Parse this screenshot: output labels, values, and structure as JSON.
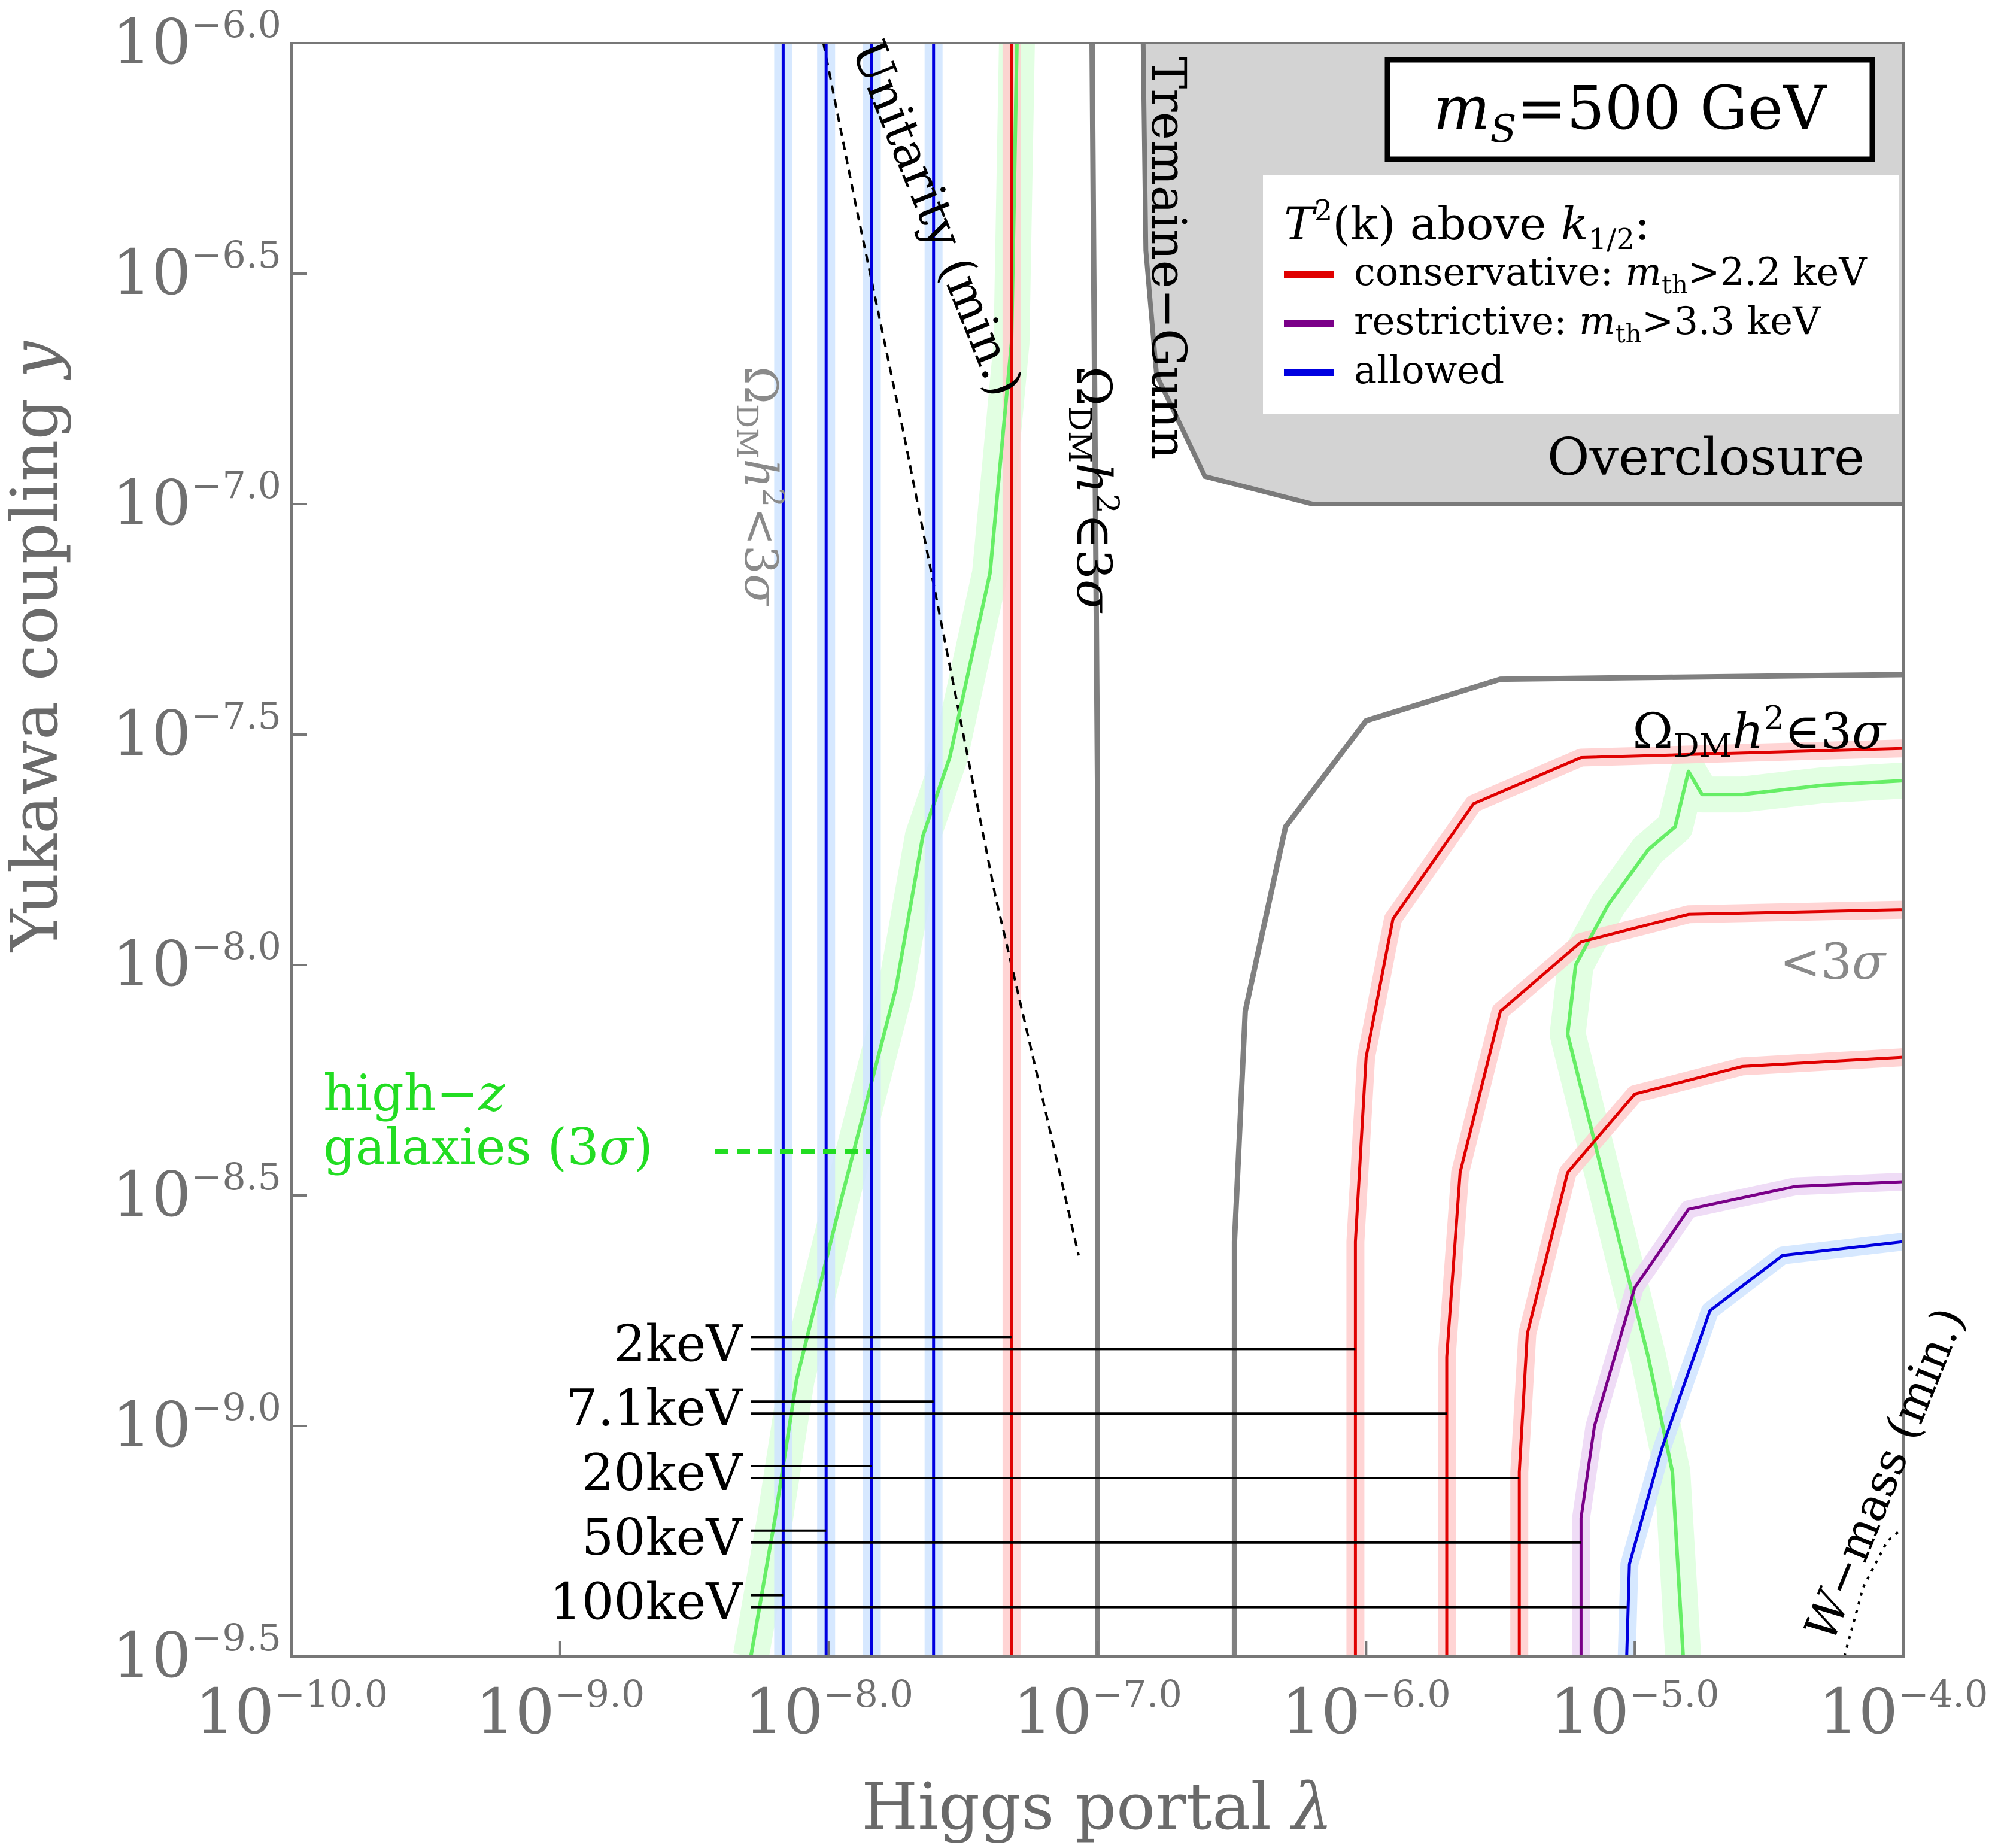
{
  "chart_data": {
    "type": "line",
    "title": "m_S=500 GeV",
    "title_parts": {
      "m": "m",
      "sub": "S",
      "rest": "=500 GeV"
    },
    "xlabel": "Higgs portal λ",
    "xlabel_text": "Higgs portal ",
    "xlabel_sym": "λ",
    "ylabel": "Yukawa coupling y",
    "ylabel_text": "Yukawa coupling ",
    "ylabel_sym": "y",
    "x_scale": "log10",
    "y_scale": "log10",
    "xlim": [
      -10.0,
      -4.0
    ],
    "ylim": [
      -9.5,
      -6.0
    ],
    "x_ticks": [
      {
        "v": -10.0,
        "label": "−10.0"
      },
      {
        "v": -9.0,
        "label": "−9.0"
      },
      {
        "v": -8.0,
        "label": "−8.0"
      },
      {
        "v": -7.0,
        "label": "−7.0"
      },
      {
        "v": -6.0,
        "label": "−6.0"
      },
      {
        "v": -5.0,
        "label": "−5.0"
      },
      {
        "v": -4.0,
        "label": "−4.0"
      }
    ],
    "y_ticks": [
      {
        "v": -6.0,
        "label": "−6.0"
      },
      {
        "v": -6.5,
        "label": "−6.5"
      },
      {
        "v": -7.0,
        "label": "−7.0"
      },
      {
        "v": -7.5,
        "label": "−7.5"
      },
      {
        "v": -8.0,
        "label": "−8.0"
      },
      {
        "v": -8.5,
        "label": "−8.5"
      },
      {
        "v": -9.0,
        "label": "−9.0"
      },
      {
        "v": -9.5,
        "label": "−9.5"
      }
    ],
    "tick_base": "10",
    "legend": {
      "placement": "top-right",
      "title": {
        "T": "T",
        "sup": "2",
        "mid": "(k) above ",
        "k": "k",
        "sub": "1/2",
        "end": ":"
      },
      "entries": [
        {
          "name": "conservative",
          "color": "#e00000",
          "label": "conservative: ",
          "m": "m",
          "sub": "th",
          "cond": ">2.2 keV"
        },
        {
          "name": "restrictive",
          "color": "#7a0088",
          "label": "restrictive: ",
          "m": "m",
          "sub": "th",
          "cond": ">3.3 keV"
        },
        {
          "name": "allowed",
          "color": "#0000e0",
          "label": "allowed",
          "m": "",
          "sub": "",
          "cond": ""
        }
      ]
    },
    "regions": [
      {
        "name": "Overclosure",
        "label": "Overclosure",
        "color": "#d3d3d3",
        "boundary": [
          [
            -6.83,
            -6.0
          ],
          [
            -6.82,
            -6.45
          ],
          [
            -6.78,
            -6.72
          ],
          [
            -6.6,
            -6.94
          ],
          [
            -6.2,
            -7.0
          ],
          [
            -4.0,
            -7.0
          ]
        ]
      }
    ],
    "series": [
      {
        "name": "Tremaine-Gunn",
        "color": "#808080",
        "label": "Tremaine−Gunn",
        "points": [
          [
            -7.02,
            -6.0
          ],
          [
            -7.0,
            -7.6
          ],
          [
            -7.0,
            -9.5
          ]
        ]
      },
      {
        "name": "Omega_DM h2 in 3sigma (right)",
        "color": "#808080",
        "points": [
          [
            -6.49,
            -9.5
          ],
          [
            -6.49,
            -8.6
          ],
          [
            -6.45,
            -8.1
          ],
          [
            -6.3,
            -7.7
          ],
          [
            -6.0,
            -7.47
          ],
          [
            -5.5,
            -7.38
          ],
          [
            -4.0,
            -7.37
          ]
        ]
      },
      {
        "name": "Unitarity (min.)",
        "color": "#000000",
        "dash": "dashed",
        "label": "Unitarity (min.)",
        "points": [
          [
            -8.02,
            -6.0
          ],
          [
            -7.9,
            -6.35
          ],
          [
            -7.72,
            -6.85
          ],
          [
            -7.55,
            -7.35
          ],
          [
            -7.38,
            -7.85
          ],
          [
            -7.2,
            -8.3
          ],
          [
            -7.07,
            -8.63
          ]
        ]
      },
      {
        "name": "W-mass (min.)",
        "color": "#000000",
        "dash": "dotted",
        "label": "W−mass (min.)",
        "points": [
          [
            -4.22,
            -9.5
          ],
          [
            -4.15,
            -9.35
          ],
          [
            -4.06,
            -9.25
          ],
          [
            -4.0,
            -9.22
          ]
        ]
      },
      {
        "name": "high-z galaxies (3 sigma)",
        "color": "#66ee66",
        "points": [
          [
            -8.29,
            -9.5
          ],
          [
            -8.2,
            -9.2
          ],
          [
            -8.12,
            -8.9
          ],
          [
            -7.95,
            -8.5
          ],
          [
            -7.75,
            -8.05
          ],
          [
            -7.65,
            -7.72
          ],
          [
            -7.55,
            -7.55
          ],
          [
            -7.4,
            -7.15
          ],
          [
            -7.32,
            -6.65
          ],
          [
            -7.3,
            -6.0
          ]
        ]
      },
      {
        "name": "high-z galaxies (3 sigma) right",
        "color": "#66ee66",
        "points": [
          [
            -4.82,
            -9.5
          ],
          [
            -4.86,
            -9.1
          ],
          [
            -4.95,
            -8.85
          ],
          [
            -5.1,
            -8.5
          ],
          [
            -5.25,
            -8.15
          ],
          [
            -5.22,
            -8.0
          ],
          [
            -5.1,
            -7.87
          ],
          [
            -4.95,
            -7.75
          ],
          [
            -4.85,
            -7.7
          ],
          [
            -4.8,
            -7.58
          ],
          [
            -4.75,
            -7.63
          ],
          [
            -4.6,
            -7.63
          ],
          [
            -4.3,
            -7.61
          ],
          [
            -4.0,
            -7.6
          ]
        ]
      },
      {
        "name": "vertical 2keV",
        "color": "#e00000",
        "points": [
          [
            -7.32,
            -9.5
          ],
          [
            -7.32,
            -6.0
          ]
        ]
      },
      {
        "name": "vertical 7.1keV",
        "color": "#0000e0",
        "points": [
          [
            -7.61,
            -9.5
          ],
          [
            -7.61,
            -6.0
          ]
        ]
      },
      {
        "name": "vertical 20keV",
        "color": "#0000e0",
        "points": [
          [
            -7.84,
            -9.5
          ],
          [
            -7.84,
            -6.0
          ]
        ]
      },
      {
        "name": "vertical 50keV",
        "color": "#0000e0",
        "points": [
          [
            -8.01,
            -9.5
          ],
          [
            -8.01,
            -6.0
          ]
        ]
      },
      {
        "name": "vertical 100keV",
        "color": "#0000e0",
        "points": [
          [
            -8.17,
            -9.5
          ],
          [
            -8.17,
            -6.0
          ]
        ]
      },
      {
        "name": "corner 2keV",
        "color": "#e00000",
        "points": [
          [
            -6.04,
            -9.5
          ],
          [
            -6.04,
            -8.6
          ],
          [
            -6.0,
            -8.2
          ],
          [
            -5.9,
            -7.9
          ],
          [
            -5.6,
            -7.65
          ],
          [
            -5.2,
            -7.55
          ],
          [
            -4.0,
            -7.53
          ]
        ]
      },
      {
        "name": "corner 7.1keV",
        "color": "#e00000",
        "points": [
          [
            -5.7,
            -9.5
          ],
          [
            -5.7,
            -8.85
          ],
          [
            -5.65,
            -8.45
          ],
          [
            -5.5,
            -8.1
          ],
          [
            -5.2,
            -7.95
          ],
          [
            -4.8,
            -7.89
          ],
          [
            -4.0,
            -7.88
          ]
        ]
      },
      {
        "name": "corner 20keV",
        "color": "#e00000",
        "points": [
          [
            -5.43,
            -9.5
          ],
          [
            -5.43,
            -9.1
          ],
          [
            -5.4,
            -8.8
          ],
          [
            -5.25,
            -8.45
          ],
          [
            -5.0,
            -8.28
          ],
          [
            -4.6,
            -8.22
          ],
          [
            -4.0,
            -8.2
          ]
        ]
      },
      {
        "name": "corner 50keV",
        "color": "#7a0088",
        "points": [
          [
            -5.2,
            -9.5
          ],
          [
            -5.2,
            -9.2
          ],
          [
            -5.15,
            -9.0
          ],
          [
            -5.0,
            -8.7
          ],
          [
            -4.8,
            -8.53
          ],
          [
            -4.4,
            -8.48
          ],
          [
            -4.0,
            -8.47
          ]
        ]
      },
      {
        "name": "corner 100keV",
        "color": "#0000e0",
        "points": [
          [
            -5.03,
            -9.5
          ],
          [
            -5.02,
            -9.3
          ],
          [
            -4.9,
            -9.05
          ],
          [
            -4.72,
            -8.75
          ],
          [
            -4.45,
            -8.63
          ],
          [
            -4.0,
            -8.6
          ]
        ]
      }
    ],
    "mass_labels": [
      {
        "label": "2keV",
        "y": -8.82,
        "x_short": -7.32,
        "x_long": -6.04
      },
      {
        "label": "7.1keV",
        "y": -8.96,
        "x_short": -7.61,
        "x_long": -5.7
      },
      {
        "label": "20keV",
        "y": -9.1,
        "x_short": -7.84,
        "x_long": -5.43
      },
      {
        "label": "50keV",
        "y": -9.24,
        "x_short": -8.01,
        "x_long": -5.2
      },
      {
        "label": "100keV",
        "y": -9.38,
        "x_short": -8.17,
        "x_long": -5.03
      }
    ],
    "annotations": {
      "omega_lt": {
        "O": "Ω",
        "sub": "DM",
        "h": "h",
        "sup": "2",
        "rel": "<3",
        "sig": "σ"
      },
      "omega_in": {
        "O": "Ω",
        "sub": "DM",
        "h": "h",
        "sup": "2",
        "rel": "∈3",
        "sig": "σ"
      },
      "omega_in_right": {
        "O": "Ω",
        "sub": "DM",
        "h": "h",
        "sup": "2",
        "rel": "∈3",
        "sig": "σ"
      },
      "lt3sigma": {
        "rel": "<3",
        "sig": "σ"
      },
      "tremaine": "Tremaine−Gunn",
      "unitarity": "Unitarity (min.)",
      "overclosure": "Overclosure",
      "highz_1a": "high−",
      "highz_1b": "z",
      "highz_2a": "galaxies (3",
      "highz_2b": "σ",
      "highz_2c": ")",
      "wmass_a": "W",
      "wmass_b": "−mass (min.)"
    }
  }
}
